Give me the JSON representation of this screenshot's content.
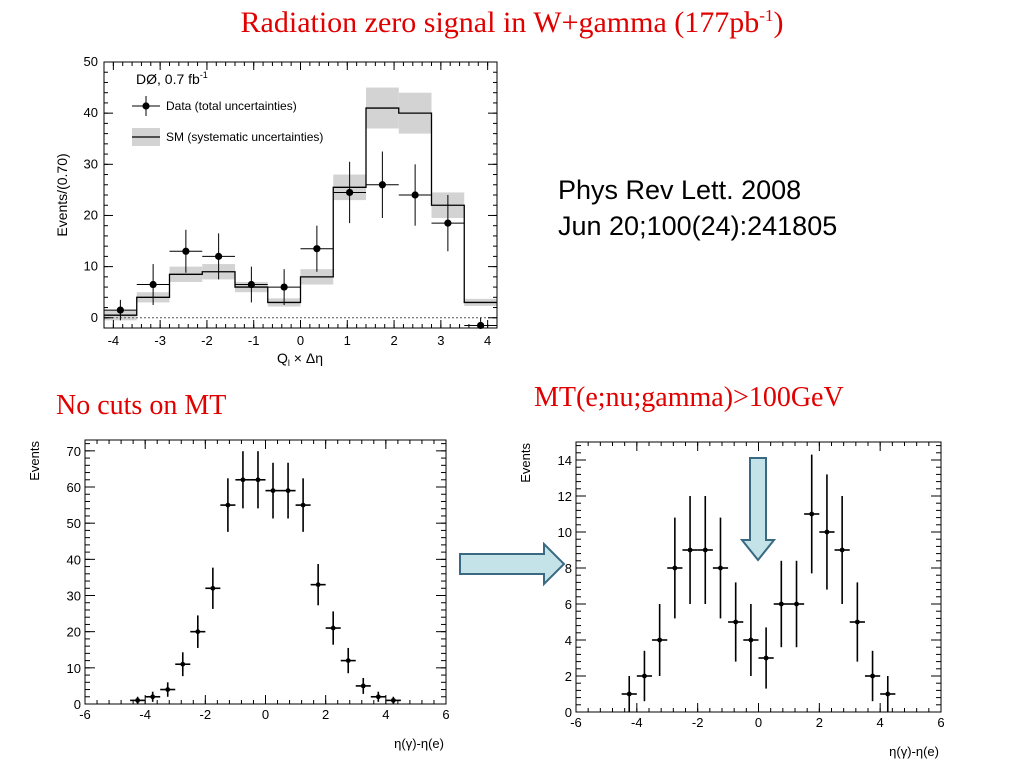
{
  "slide": {
    "title": "Radiation zero signal in W+gamma (177pb",
    "title_sup": "-1",
    "title_end": ")",
    "reference_line1": "Phys Rev Lett. 2008",
    "reference_line2": "Jun 20;100(24):241805",
    "subtitle_left": "No cuts on MT",
    "subtitle_right": "MT(e;nu;gamma)>100GeV",
    "title_color": "#e00000"
  },
  "chart_data": [
    {
      "type": "histogram",
      "experiment_label": "DØ, 0.7 fb",
      "experiment_label_sup": "-1",
      "ylabel": "Events/(0.70)",
      "xlabel": "Q",
      "xlabel_sub": "l",
      "xlabel_rest": " × Δη",
      "xlim": [
        -4.2,
        4.2
      ],
      "ylim": [
        -2,
        50
      ],
      "x_ticks": [
        "-4",
        "-3",
        "-2",
        "-1",
        "0",
        "1",
        "2",
        "3",
        "4"
      ],
      "y_ticks": [
        "0",
        "10",
        "20",
        "30",
        "40",
        "50"
      ],
      "legend": [
        {
          "name": "Data (total uncertainties)",
          "style": "points"
        },
        {
          "name": "SM (systematic uncertainties)",
          "style": "band"
        }
      ],
      "legend_position": "top-left",
      "bin_edges": [
        -4.2,
        -3.5,
        -2.8,
        -2.1,
        -1.4,
        -0.7,
        0.0,
        0.7,
        1.4,
        2.1,
        2.8,
        3.5,
        4.2
      ],
      "sm_values": [
        0.5,
        4,
        8.5,
        9,
        6,
        3,
        8,
        25.5,
        41,
        40,
        22,
        3
      ],
      "sm_band": [
        1,
        1,
        1.5,
        1.5,
        1,
        0.8,
        1.5,
        2.5,
        4,
        4,
        2.5,
        0.7
      ],
      "data": {
        "x": [
          -3.85,
          -3.15,
          -2.45,
          -1.75,
          -1.05,
          -0.35,
          0.35,
          1.05,
          1.75,
          2.45,
          3.15,
          3.85
        ],
        "y": [
          1.5,
          6.5,
          13,
          12,
          6.5,
          6,
          13.5,
          24.5,
          26,
          24,
          18.5,
          -1.5
        ],
        "err": [
          2,
          4,
          4.2,
          4.5,
          3.5,
          3.5,
          4.5,
          6,
          6.5,
          6,
          5.5,
          1.5
        ]
      },
      "colors": {
        "band": "#d3d3d3",
        "line": "#000000"
      }
    },
    {
      "type": "scatter",
      "xlabel": "η(γ)-η(e)",
      "ylabel": "Events",
      "xlim": [
        -6,
        6
      ],
      "ylim": [
        0,
        73
      ],
      "x_ticks": [
        "-6",
        "-4",
        "-2",
        "0",
        "2",
        "4",
        "6"
      ],
      "y_ticks": [
        "0",
        "10",
        "20",
        "30",
        "40",
        "50",
        "60",
        "70"
      ],
      "x": [
        -4.25,
        -3.75,
        -3.25,
        -2.75,
        -2.25,
        -1.75,
        -1.25,
        -0.75,
        -0.25,
        0.25,
        0.75,
        1.25,
        1.75,
        2.25,
        2.75,
        3.25,
        3.75,
        4.25
      ],
      "y": [
        1,
        2,
        4,
        11,
        20,
        32,
        55,
        62,
        62,
        59,
        59,
        55,
        33,
        21,
        12,
        5,
        2,
        1
      ],
      "err": [
        1,
        1.4,
        2,
        3.3,
        4.5,
        5.7,
        7.4,
        7.9,
        7.9,
        7.7,
        7.7,
        7.4,
        5.7,
        4.6,
        3.5,
        2.2,
        1.4,
        1
      ],
      "x_err": 0.25
    },
    {
      "type": "scatter",
      "xlabel": "η(γ)-η(e)",
      "ylabel": "Events",
      "xlim": [
        -6,
        6
      ],
      "ylim": [
        0,
        15
      ],
      "x_ticks": [
        "-6",
        "-4",
        "-2",
        "0",
        "2",
        "4",
        "6"
      ],
      "y_ticks": [
        "0",
        "2",
        "4",
        "6",
        "8",
        "10",
        "12",
        "14"
      ],
      "x": [
        -4.25,
        -3.75,
        -3.25,
        -2.75,
        -2.25,
        -1.75,
        -1.25,
        -0.75,
        -0.25,
        0.25,
        0.75,
        1.25,
        1.75,
        2.25,
        2.75,
        3.25,
        3.75,
        4.25
      ],
      "y": [
        1,
        2,
        4,
        8,
        9,
        9,
        8,
        5,
        4,
        3,
        6,
        6,
        11,
        10,
        9,
        5,
        2,
        1
      ],
      "err": [
        1,
        1.4,
        2,
        2.8,
        3,
        3,
        2.8,
        2.2,
        2,
        1.7,
        2.4,
        2.4,
        3.3,
        3.2,
        3,
        2.2,
        1.4,
        1
      ],
      "x_err": 0.25
    }
  ]
}
